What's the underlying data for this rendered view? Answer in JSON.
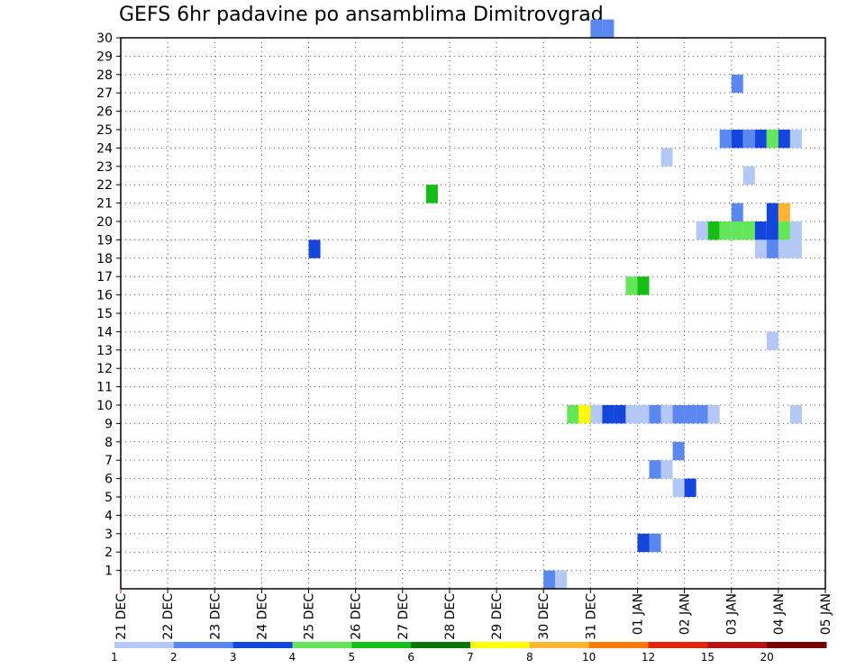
{
  "chart_data": {
    "type": "heatmap",
    "title": "GEFS 6hr padavine po ansamblima Dimitrovgrad",
    "xlabel": "",
    "ylabel": "",
    "x_ticks": [
      "21 DEC",
      "22 DEC",
      "23 DEC",
      "24 DEC",
      "25 DEC",
      "26 DEC",
      "27 DEC",
      "28 DEC",
      "29 DEC",
      "30 DEC",
      "31 DEC",
      "01 JAN",
      "02 JAN",
      "03 JAN",
      "04 JAN",
      "05 JAN"
    ],
    "y_ticks": [
      "1",
      "2",
      "3",
      "4",
      "5",
      "6",
      "7",
      "8",
      "9",
      "10",
      "11",
      "12",
      "13",
      "14",
      "15",
      "16",
      "17",
      "18",
      "19",
      "20",
      "21",
      "22",
      "23",
      "24",
      "25",
      "26",
      "27",
      "28",
      "29",
      "30"
    ],
    "x_range_days": [
      0,
      15
    ],
    "y_range": [
      0,
      30
    ],
    "grid": true,
    "legend": {
      "position": "bottom",
      "colors": [
        "#b4c8f5",
        "#5a87f0",
        "#1446dc",
        "#64e65a",
        "#14be14",
        "#0a780a",
        "#ffff00",
        "#ffb432",
        "#ff7800",
        "#dc280a",
        "#b41414",
        "#780000"
      ],
      "labels": [
        "1",
        "2",
        "3",
        "4",
        "5",
        "6",
        "7",
        "8",
        "10",
        "12",
        "15",
        "20"
      ]
    },
    "cells": [
      {
        "x": 10,
        "y": 30,
        "level": 2
      },
      {
        "x": 10.25,
        "y": 30,
        "level": 2
      },
      {
        "x": 13,
        "y": 27,
        "level": 2
      },
      {
        "x": 12.75,
        "y": 24,
        "level": 2
      },
      {
        "x": 13,
        "y": 24,
        "level": 3
      },
      {
        "x": 13.25,
        "y": 24,
        "level": 2
      },
      {
        "x": 13.5,
        "y": 24,
        "level": 3
      },
      {
        "x": 13.75,
        "y": 24,
        "level": 4
      },
      {
        "x": 14,
        "y": 24,
        "level": 3
      },
      {
        "x": 14.25,
        "y": 24,
        "level": 1
      },
      {
        "x": 11.5,
        "y": 23,
        "level": 1
      },
      {
        "x": 13.25,
        "y": 22,
        "level": 1
      },
      {
        "x": 6.5,
        "y": 21,
        "level": 5
      },
      {
        "x": 13,
        "y": 20,
        "level": 2
      },
      {
        "x": 13.75,
        "y": 20,
        "level": 3
      },
      {
        "x": 14,
        "y": 20,
        "level": 8
      },
      {
        "x": 15,
        "y": 20,
        "level": 1
      },
      {
        "x": 12.25,
        "y": 19,
        "level": 1
      },
      {
        "x": 12.5,
        "y": 19,
        "level": 5
      },
      {
        "x": 12.75,
        "y": 19,
        "level": 4
      },
      {
        "x": 13,
        "y": 19,
        "level": 4
      },
      {
        "x": 13.25,
        "y": 19,
        "level": 4
      },
      {
        "x": 13.5,
        "y": 19,
        "level": 3
      },
      {
        "x": 13.75,
        "y": 19,
        "level": 3
      },
      {
        "x": 14,
        "y": 19,
        "level": 4
      },
      {
        "x": 14.25,
        "y": 19,
        "level": 1
      },
      {
        "x": 15,
        "y": 19,
        "level": 1
      },
      {
        "x": 4,
        "y": 18,
        "level": 3
      },
      {
        "x": 13.5,
        "y": 18,
        "level": 1
      },
      {
        "x": 13.75,
        "y": 18,
        "level": 2
      },
      {
        "x": 14,
        "y": 18,
        "level": 1
      },
      {
        "x": 14.25,
        "y": 18,
        "level": 1
      },
      {
        "x": 10.75,
        "y": 16,
        "level": 4
      },
      {
        "x": 11,
        "y": 16,
        "level": 5
      },
      {
        "x": 13.75,
        "y": 13,
        "level": 1
      },
      {
        "x": 9.5,
        "y": 9,
        "level": 4
      },
      {
        "x": 9.75,
        "y": 9,
        "level": 7
      },
      {
        "x": 10,
        "y": 9,
        "level": 1
      },
      {
        "x": 10.25,
        "y": 9,
        "level": 3
      },
      {
        "x": 10.5,
        "y": 9,
        "level": 3
      },
      {
        "x": 10.75,
        "y": 9,
        "level": 1
      },
      {
        "x": 11,
        "y": 9,
        "level": 1
      },
      {
        "x": 11.25,
        "y": 9,
        "level": 2
      },
      {
        "x": 11.5,
        "y": 9,
        "level": 1
      },
      {
        "x": 11.75,
        "y": 9,
        "level": 2
      },
      {
        "x": 12,
        "y": 9,
        "level": 2
      },
      {
        "x": 12.25,
        "y": 9,
        "level": 2
      },
      {
        "x": 12.5,
        "y": 9,
        "level": 1
      },
      {
        "x": 14.25,
        "y": 9,
        "level": 1
      },
      {
        "x": 11.75,
        "y": 7,
        "level": 2
      },
      {
        "x": 11.25,
        "y": 6,
        "level": 2
      },
      {
        "x": 11.5,
        "y": 6,
        "level": 1
      },
      {
        "x": 11.75,
        "y": 5,
        "level": 1
      },
      {
        "x": 12,
        "y": 5,
        "level": 3
      },
      {
        "x": 11,
        "y": 2,
        "level": 3
      },
      {
        "x": 11.25,
        "y": 2,
        "level": 2
      },
      {
        "x": 9,
        "y": 0,
        "level": 2
      },
      {
        "x": 9.25,
        "y": 0,
        "level": 1
      }
    ]
  }
}
